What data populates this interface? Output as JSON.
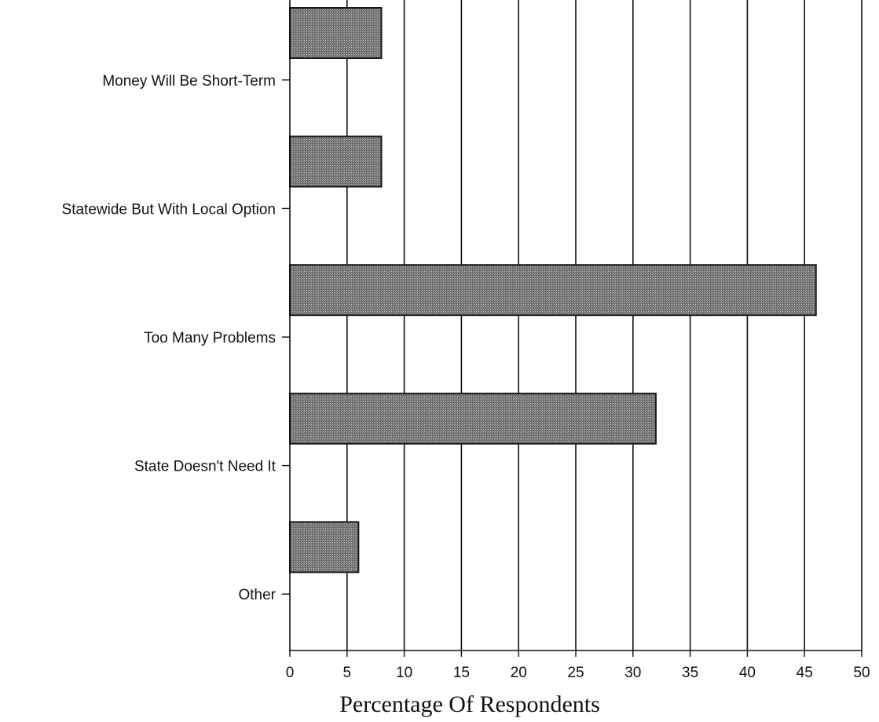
{
  "chart_data": {
    "type": "bar",
    "orientation": "horizontal",
    "categories": [
      "Money Will Be Short-Term",
      "Statewide But With Local Option",
      "Too Many Problems",
      "State Doesn't Need It",
      "Other"
    ],
    "values": [
      8,
      8,
      46,
      32,
      6
    ],
    "title": "",
    "xlabel": "Percentage Of Respondents",
    "ylabel": "",
    "xlim": [
      0,
      50
    ],
    "xticks": [
      "0",
      "5",
      "10",
      "15",
      "20",
      "25",
      "30",
      "35",
      "40",
      "45",
      "50"
    ],
    "grid": "vertical",
    "legend": "none",
    "bar_color": "#7a7a7a",
    "bar_edge_color": "#1a1a1a",
    "grid_color": "#111111"
  }
}
